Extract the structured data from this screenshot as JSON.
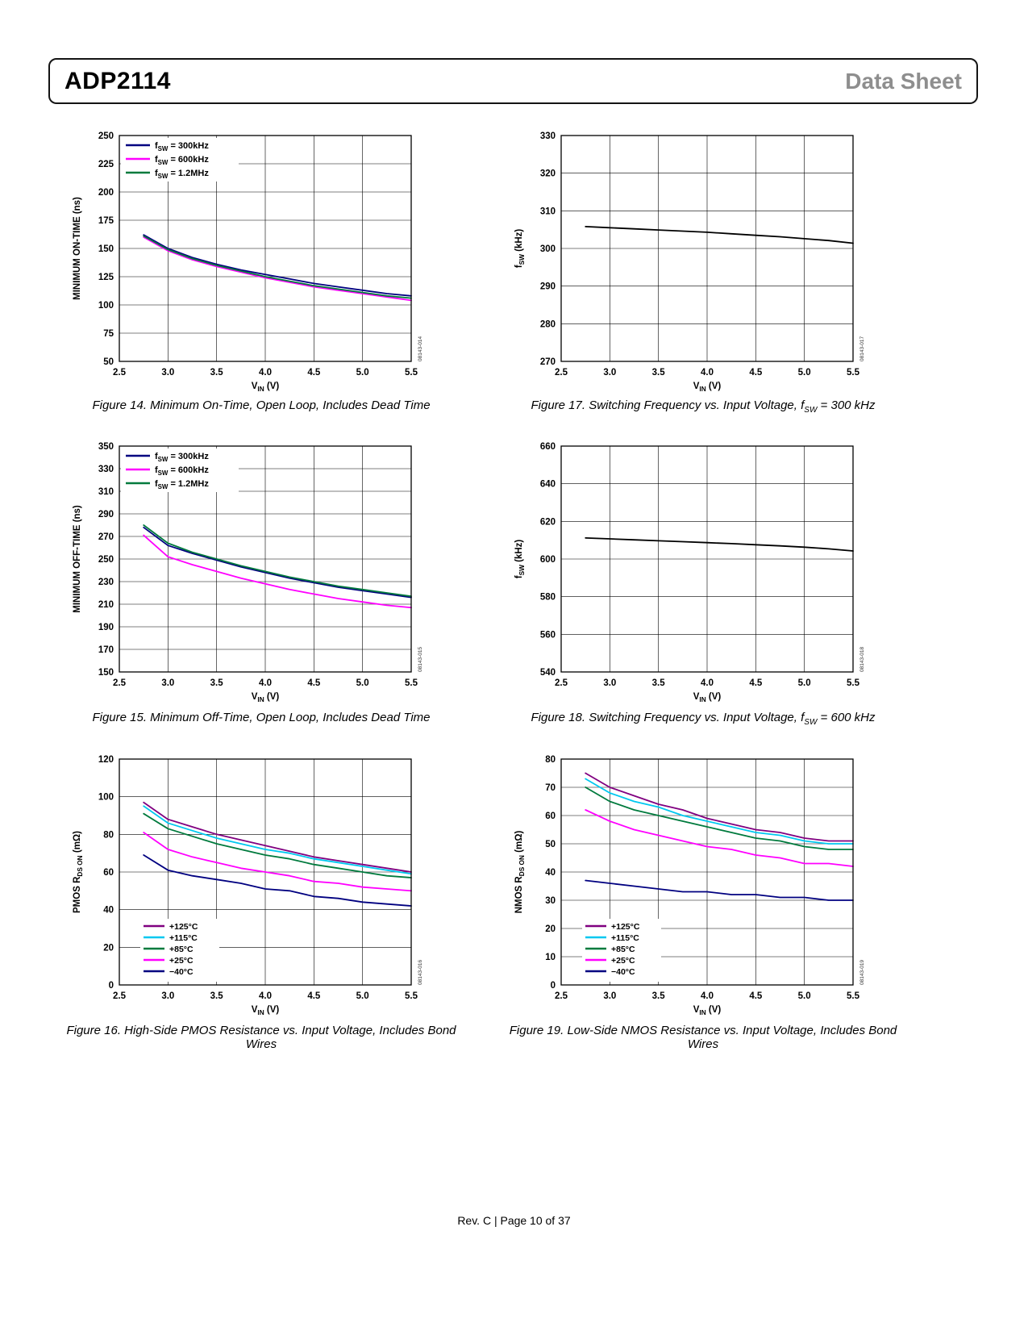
{
  "header": {
    "part": "ADP2114",
    "doc_type": "Data Sheet"
  },
  "footer": {
    "text": "Rev. C | Page 10 of 37"
  },
  "chart_data": [
    {
      "id": "figure-14",
      "type": "line",
      "caption": "Figure 14. Minimum On-Time, Open Loop, Includes Dead Time",
      "code": "08143-014",
      "xlabel": "V_{IN} (V)",
      "ylabel": "MINIMUM ON-TIME (ns)",
      "xlim": [
        2.5,
        5.5
      ],
      "xtick_step": 0.5,
      "ylim": [
        50,
        250
      ],
      "ytick_step": 25,
      "legend": "top-left",
      "x": [
        2.75,
        3.0,
        3.25,
        3.5,
        3.75,
        4.0,
        4.25,
        4.5,
        4.75,
        5.0,
        5.25,
        5.5
      ],
      "series": [
        {
          "name": "f_{SW} = 300kHz",
          "color": "#000080",
          "values": [
            162,
            150,
            142,
            136,
            131,
            127,
            123,
            119,
            116,
            113,
            110,
            108
          ]
        },
        {
          "name": "f_{SW} = 600kHz",
          "color": "#ff00ff",
          "values": [
            160,
            148,
            140,
            134,
            129,
            124,
            120,
            116,
            113,
            110,
            107,
            104
          ]
        },
        {
          "name": "f_{SW} = 1.2MHz",
          "color": "#007a3d",
          "values": [
            161,
            149,
            141,
            135,
            130,
            125,
            121,
            117,
            114,
            111,
            108,
            106
          ]
        }
      ]
    },
    {
      "id": "figure-17",
      "type": "line",
      "caption": "Figure 17. Switching Frequency vs. Input Voltage, f_{SW} = 300 kHz",
      "code": "08143-017",
      "xlabel": "V_{IN} (V)",
      "ylabel": "f_{SW} (kHz)",
      "xlim": [
        2.5,
        5.5
      ],
      "xtick_step": 0.5,
      "ylim": [
        270,
        330
      ],
      "ytick_step": 10,
      "legend": "none",
      "x": [
        2.75,
        3.0,
        3.25,
        3.5,
        3.75,
        4.0,
        4.25,
        4.5,
        4.75,
        5.0,
        5.25,
        5.5
      ],
      "series": [
        {
          "name": "f_{SW} = 300kHz",
          "color": "#000000",
          "values": [
            305.8,
            305.5,
            305.2,
            304.9,
            304.6,
            304.3,
            303.9,
            303.5,
            303.1,
            302.6,
            302.1,
            301.4
          ]
        }
      ]
    },
    {
      "id": "figure-15",
      "type": "line",
      "caption": "Figure 15. Minimum Off-Time, Open Loop, Includes Dead Time",
      "code": "08143-015",
      "xlabel": "V_{IN} (V)",
      "ylabel": "MINIMUM OFF-TIME (ns)",
      "xlim": [
        2.5,
        5.5
      ],
      "xtick_step": 0.5,
      "ylim": [
        150,
        350
      ],
      "ytick_step": 20,
      "legend": "top-left",
      "x": [
        2.75,
        3.0,
        3.25,
        3.5,
        3.75,
        4.0,
        4.25,
        4.5,
        4.75,
        5.0,
        5.25,
        5.5
      ],
      "series": [
        {
          "name": "f_{SW} = 300kHz",
          "color": "#000080",
          "values": [
            278,
            262,
            255,
            249,
            243,
            238,
            233,
            229,
            225,
            222,
            219,
            216
          ]
        },
        {
          "name": "f_{SW} = 600kHz",
          "color": "#ff00ff",
          "values": [
            271,
            252,
            245,
            239,
            233,
            228,
            223,
            219,
            215,
            212,
            209,
            207
          ]
        },
        {
          "name": "f_{SW} = 1.2MHz",
          "color": "#007a3d",
          "values": [
            280,
            264,
            256,
            250,
            244,
            239,
            234,
            230,
            226,
            223,
            220,
            217
          ]
        }
      ]
    },
    {
      "id": "figure-18",
      "type": "line",
      "caption": "Figure 18. Switching Frequency vs. Input Voltage, f_{SW} = 600 kHz",
      "code": "08143-018",
      "xlabel": "V_{IN} (V)",
      "ylabel": "f_{SW} (kHz)",
      "xlim": [
        2.5,
        5.5
      ],
      "xtick_step": 0.5,
      "ylim": [
        540,
        660
      ],
      "ytick_step": 20,
      "legend": "none",
      "x": [
        2.75,
        3.0,
        3.25,
        3.5,
        3.75,
        4.0,
        4.25,
        4.5,
        4.75,
        5.0,
        5.25,
        5.5
      ],
      "series": [
        {
          "name": "f_{SW} = 600kHz",
          "color": "#000000",
          "values": [
            611.2,
            610.7,
            610.2,
            609.7,
            609.2,
            608.7,
            608.2,
            607.6,
            607.0,
            606.3,
            605.4,
            604.3
          ]
        }
      ]
    },
    {
      "id": "figure-16",
      "type": "line",
      "caption": "Figure 16. High-Side PMOS Resistance vs. Input Voltage, Includes Bond Wires",
      "code": "08143-016",
      "xlabel": "V_{IN} (V)",
      "ylabel": "PMOS R_{DS ON} (mΩ)",
      "xlim": [
        2.5,
        5.5
      ],
      "xtick_step": 0.5,
      "ylim": [
        0,
        120
      ],
      "ytick_step": 20,
      "legend": "bottom-left",
      "x": [
        2.75,
        3.0,
        3.25,
        3.5,
        3.75,
        4.0,
        4.25,
        4.5,
        4.75,
        5.0,
        5.25,
        5.5
      ],
      "series": [
        {
          "name": "+125°C",
          "color": "#800080",
          "values": [
            97,
            88,
            84,
            80,
            77,
            74,
            71,
            68,
            66,
            64,
            62,
            60
          ]
        },
        {
          "name": "+115°C",
          "color": "#00c8f0",
          "values": [
            95,
            86,
            82,
            78,
            75,
            72,
            70,
            67,
            65,
            63,
            61,
            59
          ]
        },
        {
          "name": "+85°C",
          "color": "#007a3d",
          "values": [
            91,
            83,
            79,
            75,
            72,
            69,
            67,
            64,
            62,
            60,
            58,
            57
          ]
        },
        {
          "name": "+25°C",
          "color": "#ff00ff",
          "values": [
            81,
            72,
            68,
            65,
            62,
            60,
            58,
            55,
            54,
            52,
            51,
            50
          ]
        },
        {
          "name": "−40°C",
          "color": "#000080",
          "values": [
            69,
            61,
            58,
            56,
            54,
            51,
            50,
            47,
            46,
            44,
            43,
            42
          ]
        }
      ]
    },
    {
      "id": "figure-19",
      "type": "line",
      "caption": "Figure 19. Low-Side NMOS Resistance vs. Input Voltage, Includes Bond Wires",
      "code": "08143-019",
      "xlabel": "V_{IN} (V)",
      "ylabel": "NMOS R_{DS ON} (mΩ)",
      "xlim": [
        2.5,
        5.5
      ],
      "xtick_step": 0.5,
      "ylim": [
        0,
        80
      ],
      "ytick_step": 10,
      "legend": "bottom-left",
      "x": [
        2.75,
        3.0,
        3.25,
        3.5,
        3.75,
        4.0,
        4.25,
        4.5,
        4.75,
        5.0,
        5.25,
        5.5
      ],
      "series": [
        {
          "name": "+125°C",
          "color": "#800080",
          "values": [
            75,
            70,
            67,
            64,
            62,
            59,
            57,
            55,
            54,
            52,
            51,
            51
          ]
        },
        {
          "name": "+115°C",
          "color": "#00c8f0",
          "values": [
            73,
            68,
            65,
            63,
            60,
            58,
            56,
            54,
            53,
            51,
            50,
            50
          ]
        },
        {
          "name": "+85°C",
          "color": "#007a3d",
          "values": [
            70,
            65,
            62,
            60,
            58,
            56,
            54,
            52,
            51,
            49,
            48,
            48
          ]
        },
        {
          "name": "+25°C",
          "color": "#ff00ff",
          "values": [
            62,
            58,
            55,
            53,
            51,
            49,
            48,
            46,
            45,
            43,
            43,
            42
          ]
        },
        {
          "name": "−40°C",
          "color": "#000080",
          "values": [
            37,
            36,
            35,
            34,
            33,
            33,
            32,
            32,
            31,
            31,
            30,
            30
          ]
        }
      ]
    }
  ]
}
